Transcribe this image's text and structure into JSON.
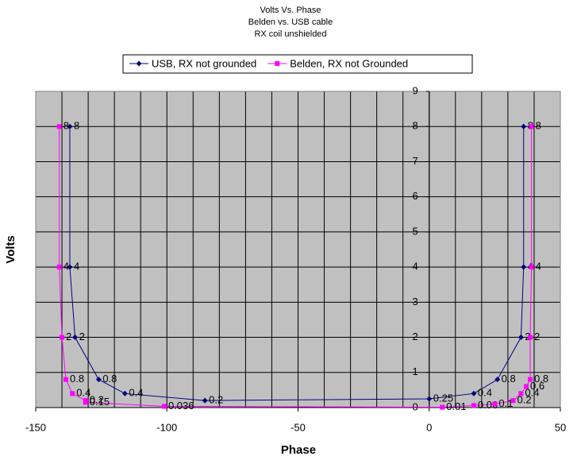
{
  "chart_data": {
    "type": "scatter",
    "title": "Volts Vs. Phase",
    "subtitle": [
      "Belden vs. USB cable",
      "RX coil unshielded"
    ],
    "xlabel": "Phase",
    "ylabel": "Volts",
    "xlim": [
      -150,
      50
    ],
    "ylim": [
      0,
      9
    ],
    "xticks": [
      -150,
      -100,
      -50,
      0,
      50
    ],
    "xgrid": [
      -140,
      -130,
      -120,
      -110,
      -100,
      -90,
      -80,
      -70,
      -60,
      -50,
      -40,
      -30,
      -20,
      -10,
      0,
      10,
      20,
      30,
      40
    ],
    "yticks": [
      0,
      1,
      2,
      3,
      4,
      5,
      6,
      7,
      8,
      9
    ],
    "grid": true,
    "legend": "top",
    "series": [
      {
        "name": "USB, RX not grounded",
        "color": "#000080",
        "marker": "diamond",
        "x": [
          -137,
          -137,
          -135,
          -126,
          -116,
          -85.5,
          0,
          17,
          26,
          35,
          36,
          36
        ],
        "values": [
          8,
          4,
          2,
          0.8,
          0.4,
          0.2,
          0.25,
          0.4,
          0.8,
          2,
          4,
          8
        ]
      },
      {
        "name": "Belden, RX not Grounded",
        "color": "#ff00ff",
        "marker": "square",
        "x": [
          -141,
          -141,
          -140,
          -138.5,
          -136,
          -131,
          -131,
          -101,
          5,
          17,
          25,
          32,
          35,
          37,
          38.5,
          38.5,
          39,
          39
        ],
        "values": [
          8,
          4,
          2,
          0.8,
          0.4,
          0.2,
          0.15,
          0.036,
          0.01,
          0.06,
          0.1,
          0.2,
          0.4,
          0.6,
          0.8,
          2,
          4,
          8
        ]
      }
    ]
  }
}
